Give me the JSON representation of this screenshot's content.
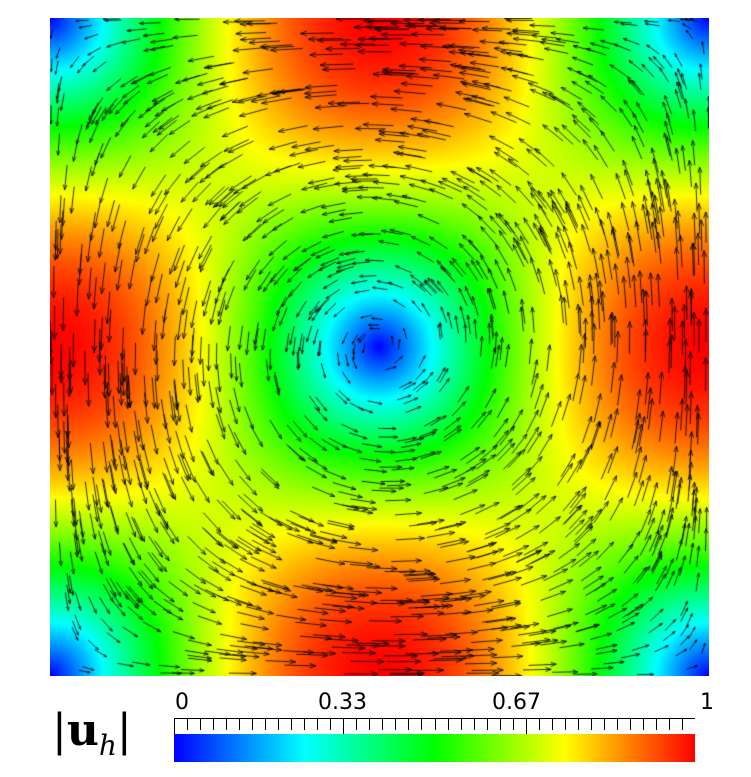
{
  "plot": {
    "title": "",
    "field": "velocity magnitude with vector glyphs"
  },
  "legend": {
    "title_bar_left": "|",
    "title_symbol": "u",
    "title_subscript": "h",
    "title_bar_right": "|",
    "ticks": [
      "0",
      "0.33",
      "0.67",
      "1"
    ],
    "tick_values": [
      0,
      0.33,
      0.67,
      1
    ],
    "range": [
      0,
      1
    ],
    "colormap": "rainbow (blue-cyan-green-yellow-red)"
  },
  "colors": {
    "low": "#0000ff",
    "mid_low": "#00ffff",
    "mid": "#00ff00",
    "mid_high": "#ffff00",
    "high": "#ff0000",
    "glyph": "#000000"
  }
}
